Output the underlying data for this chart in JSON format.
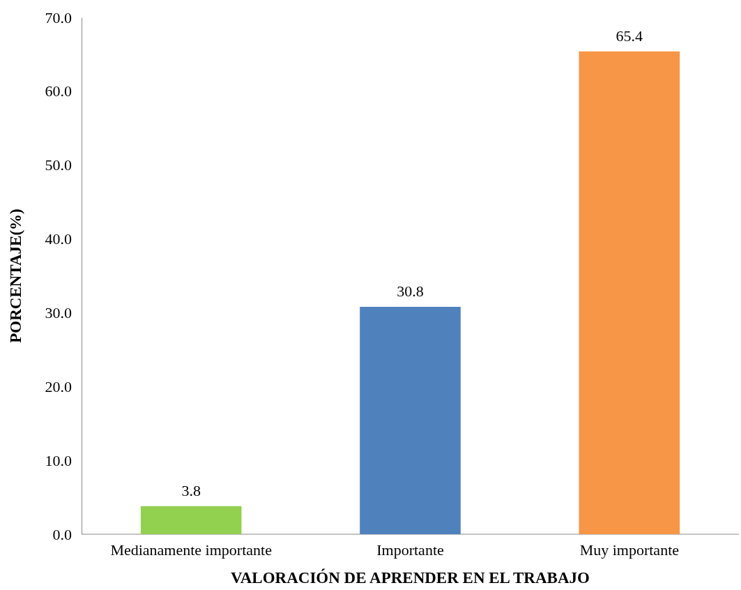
{
  "chart_data": {
    "type": "bar",
    "xlabel": "VALORACIÓN DE APRENDER EN EL TRABAJO",
    "ylabel": "PORCENTAJE(%)",
    "categories": [
      "Medianamente importante",
      "Importante",
      "Muy importante"
    ],
    "values": [
      3.8,
      30.8,
      65.4
    ],
    "colors": [
      "#92d050",
      "#4f81bd",
      "#f79646"
    ],
    "ylim": [
      0,
      70
    ],
    "yticks": [
      {
        "value": 0,
        "label": "0.0"
      },
      {
        "value": 10,
        "label": "10.0"
      },
      {
        "value": 20,
        "label": "20.0"
      },
      {
        "value": 30,
        "label": "30.0"
      },
      {
        "value": 40,
        "label": "40.0"
      },
      {
        "value": 50,
        "label": "50.0"
      },
      {
        "value": 60,
        "label": "60.0"
      },
      {
        "value": 70,
        "label": "70.0"
      }
    ],
    "grid": false,
    "data_labels": true
  }
}
